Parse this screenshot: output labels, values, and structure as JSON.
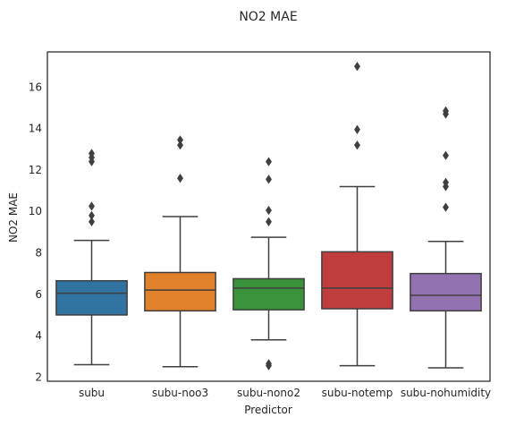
{
  "chart_data": {
    "type": "box",
    "title": "NO2 MAE",
    "xlabel": "Predictor",
    "ylabel": "NO2 MAE",
    "ylim": [
      1.8,
      17.7
    ],
    "yticks": [
      2,
      4,
      6,
      8,
      10,
      12,
      14,
      16
    ],
    "grid": false,
    "categories": [
      "subu",
      "subu-noo3",
      "subu-nono2",
      "subu-notemp",
      "subu-nohumidity"
    ],
    "colors": [
      "#3274a1",
      "#e1812c",
      "#3a923a",
      "#c03d3e",
      "#9372b2"
    ],
    "boxes": [
      {
        "whisker_low": 2.6,
        "q1": 5.0,
        "median": 6.05,
        "q3": 6.65,
        "whisker_high": 8.6,
        "outliers": [
          9.5,
          9.8,
          10.25,
          12.4,
          12.6,
          12.8
        ]
      },
      {
        "whisker_low": 2.5,
        "q1": 5.2,
        "median": 6.2,
        "q3": 7.05,
        "whisker_high": 9.75,
        "outliers": [
          11.6,
          13.2,
          13.45
        ]
      },
      {
        "whisker_low": 3.8,
        "q1": 5.25,
        "median": 6.3,
        "q3": 6.75,
        "whisker_high": 8.75,
        "outliers": [
          2.55,
          2.65,
          9.5,
          10.05,
          11.55,
          12.4
        ]
      },
      {
        "whisker_low": 2.55,
        "q1": 5.3,
        "median": 6.3,
        "q3": 8.05,
        "whisker_high": 11.2,
        "outliers": [
          13.2,
          13.95,
          17.0
        ]
      },
      {
        "whisker_low": 2.45,
        "q1": 5.2,
        "median": 5.95,
        "q3": 7.0,
        "whisker_high": 8.55,
        "outliers": [
          10.2,
          11.2,
          11.4,
          12.7,
          14.7,
          14.85
        ]
      }
    ]
  }
}
